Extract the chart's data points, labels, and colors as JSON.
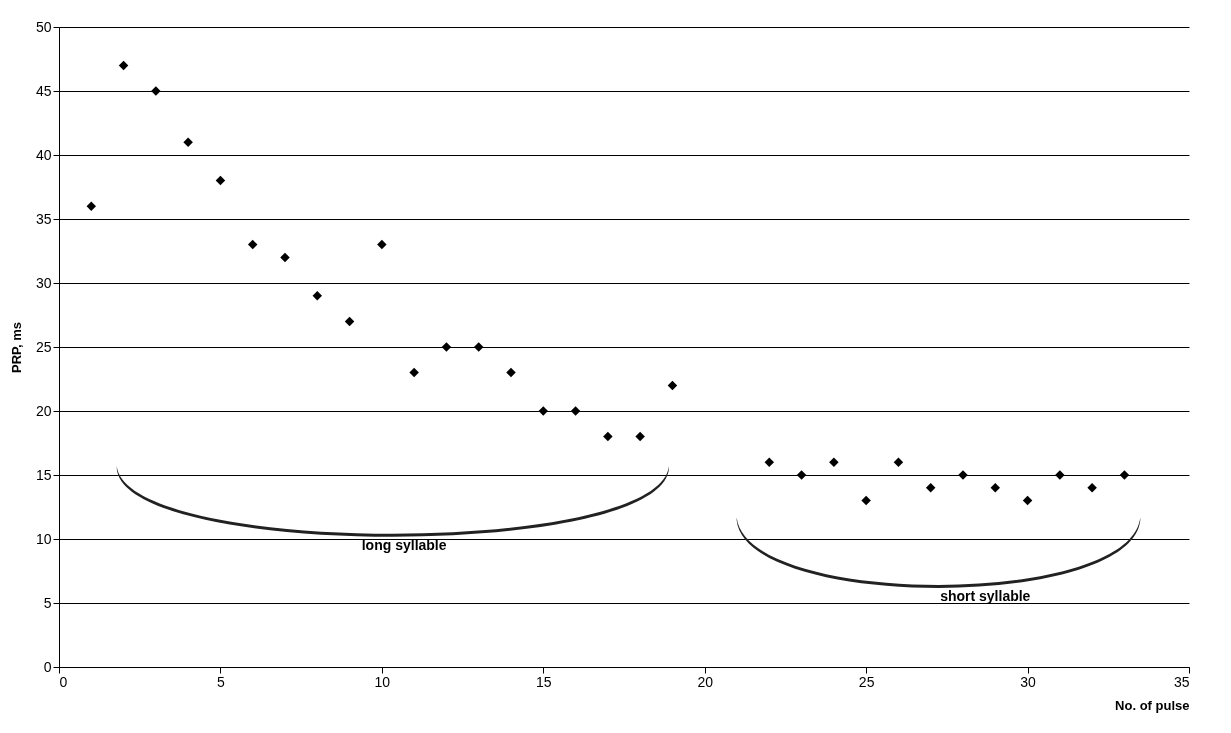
{
  "chart_data": {
    "type": "scatter",
    "xlabel": "No. of pulse",
    "ylabel": "PRP, ms",
    "x": [
      1,
      2,
      3,
      4,
      5,
      6,
      7,
      8,
      9,
      10,
      11,
      12,
      13,
      14,
      15,
      16,
      17,
      18,
      19,
      22,
      23,
      24,
      25,
      26,
      27,
      28,
      29,
      30,
      31,
      32,
      33
    ],
    "series": [
      {
        "color": "#000000",
        "values": [
          36,
          47,
          45,
          41,
          38,
          33,
          32,
          29,
          27,
          33,
          23,
          25,
          25,
          23,
          20,
          20,
          18,
          18,
          22,
          16,
          15,
          16,
          13,
          16,
          14,
          15,
          14,
          13,
          15,
          14,
          15
        ]
      }
    ],
    "xlim": [
      0,
      35
    ],
    "xticks": [
      0,
      5,
      10,
      15,
      20,
      25,
      30,
      35
    ],
    "ylim": [
      0,
      50
    ],
    "yticks": [
      0,
      5,
      10,
      15,
      20,
      25,
      30,
      35,
      40,
      45,
      50
    ],
    "grid": "y",
    "marker": "diamond",
    "annotations": [
      "long syllable",
      "short syllable"
    ]
  }
}
